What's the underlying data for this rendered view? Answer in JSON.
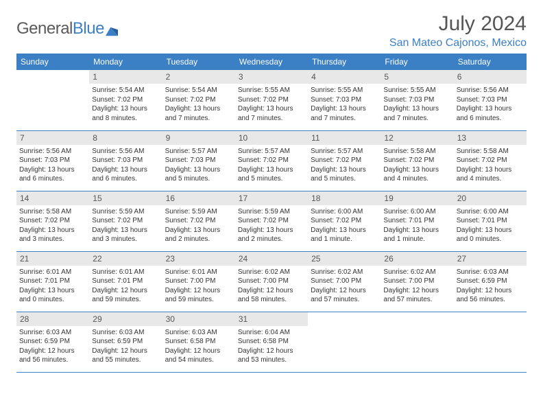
{
  "logo": {
    "word1": "General",
    "word2": "Blue"
  },
  "title": "July 2024",
  "location": "San Mateo Cajonos, Mexico",
  "colors": {
    "header_bg": "#3b7fc4",
    "header_fg": "#ffffff",
    "daynum_bg": "#e8e8e8",
    "text": "#333333",
    "accent": "#3b7fc4"
  },
  "day_headers": [
    "Sunday",
    "Monday",
    "Tuesday",
    "Wednesday",
    "Thursday",
    "Friday",
    "Saturday"
  ],
  "weeks": [
    [
      null,
      {
        "n": "1",
        "sr": "5:54 AM",
        "ss": "7:02 PM",
        "dl": "13 hours and 8 minutes."
      },
      {
        "n": "2",
        "sr": "5:54 AM",
        "ss": "7:02 PM",
        "dl": "13 hours and 7 minutes."
      },
      {
        "n": "3",
        "sr": "5:55 AM",
        "ss": "7:02 PM",
        "dl": "13 hours and 7 minutes."
      },
      {
        "n": "4",
        "sr": "5:55 AM",
        "ss": "7:03 PM",
        "dl": "13 hours and 7 minutes."
      },
      {
        "n": "5",
        "sr": "5:55 AM",
        "ss": "7:03 PM",
        "dl": "13 hours and 7 minutes."
      },
      {
        "n": "6",
        "sr": "5:56 AM",
        "ss": "7:03 PM",
        "dl": "13 hours and 6 minutes."
      }
    ],
    [
      {
        "n": "7",
        "sr": "5:56 AM",
        "ss": "7:03 PM",
        "dl": "13 hours and 6 minutes."
      },
      {
        "n": "8",
        "sr": "5:56 AM",
        "ss": "7:03 PM",
        "dl": "13 hours and 6 minutes."
      },
      {
        "n": "9",
        "sr": "5:57 AM",
        "ss": "7:03 PM",
        "dl": "13 hours and 5 minutes."
      },
      {
        "n": "10",
        "sr": "5:57 AM",
        "ss": "7:02 PM",
        "dl": "13 hours and 5 minutes."
      },
      {
        "n": "11",
        "sr": "5:57 AM",
        "ss": "7:02 PM",
        "dl": "13 hours and 5 minutes."
      },
      {
        "n": "12",
        "sr": "5:58 AM",
        "ss": "7:02 PM",
        "dl": "13 hours and 4 minutes."
      },
      {
        "n": "13",
        "sr": "5:58 AM",
        "ss": "7:02 PM",
        "dl": "13 hours and 4 minutes."
      }
    ],
    [
      {
        "n": "14",
        "sr": "5:58 AM",
        "ss": "7:02 PM",
        "dl": "13 hours and 3 minutes."
      },
      {
        "n": "15",
        "sr": "5:59 AM",
        "ss": "7:02 PM",
        "dl": "13 hours and 3 minutes."
      },
      {
        "n": "16",
        "sr": "5:59 AM",
        "ss": "7:02 PM",
        "dl": "13 hours and 2 minutes."
      },
      {
        "n": "17",
        "sr": "5:59 AM",
        "ss": "7:02 PM",
        "dl": "13 hours and 2 minutes."
      },
      {
        "n": "18",
        "sr": "6:00 AM",
        "ss": "7:02 PM",
        "dl": "13 hours and 1 minute."
      },
      {
        "n": "19",
        "sr": "6:00 AM",
        "ss": "7:01 PM",
        "dl": "13 hours and 1 minute."
      },
      {
        "n": "20",
        "sr": "6:00 AM",
        "ss": "7:01 PM",
        "dl": "13 hours and 0 minutes."
      }
    ],
    [
      {
        "n": "21",
        "sr": "6:01 AM",
        "ss": "7:01 PM",
        "dl": "13 hours and 0 minutes."
      },
      {
        "n": "22",
        "sr": "6:01 AM",
        "ss": "7:01 PM",
        "dl": "12 hours and 59 minutes."
      },
      {
        "n": "23",
        "sr": "6:01 AM",
        "ss": "7:00 PM",
        "dl": "12 hours and 59 minutes."
      },
      {
        "n": "24",
        "sr": "6:02 AM",
        "ss": "7:00 PM",
        "dl": "12 hours and 58 minutes."
      },
      {
        "n": "25",
        "sr": "6:02 AM",
        "ss": "7:00 PM",
        "dl": "12 hours and 57 minutes."
      },
      {
        "n": "26",
        "sr": "6:02 AM",
        "ss": "7:00 PM",
        "dl": "12 hours and 57 minutes."
      },
      {
        "n": "27",
        "sr": "6:03 AM",
        "ss": "6:59 PM",
        "dl": "12 hours and 56 minutes."
      }
    ],
    [
      {
        "n": "28",
        "sr": "6:03 AM",
        "ss": "6:59 PM",
        "dl": "12 hours and 56 minutes."
      },
      {
        "n": "29",
        "sr": "6:03 AM",
        "ss": "6:59 PM",
        "dl": "12 hours and 55 minutes."
      },
      {
        "n": "30",
        "sr": "6:03 AM",
        "ss": "6:58 PM",
        "dl": "12 hours and 54 minutes."
      },
      {
        "n": "31",
        "sr": "6:04 AM",
        "ss": "6:58 PM",
        "dl": "12 hours and 53 minutes."
      },
      null,
      null,
      null
    ]
  ],
  "labels": {
    "sunrise": "Sunrise:",
    "sunset": "Sunset:",
    "daylight": "Daylight:"
  }
}
